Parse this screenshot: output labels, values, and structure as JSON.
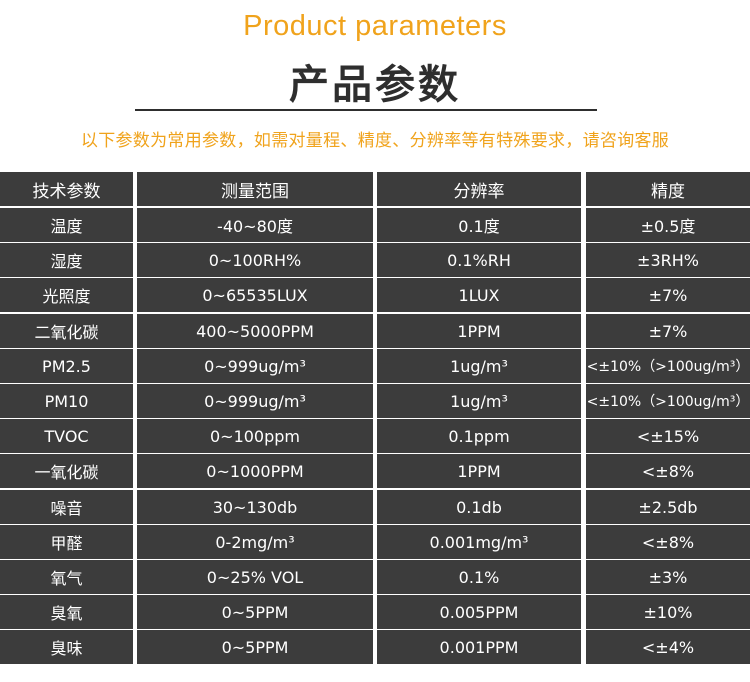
{
  "header": {
    "subtitle_en": "Product parameters",
    "title_zh": "产品参数",
    "notice": "以下参数为常用参数，如需对量程、精度、分辨率等有特殊要求，请咨询客服"
  },
  "table": {
    "columns": [
      "技术参数",
      "测量范围",
      "分辨率",
      "精度"
    ],
    "rows": [
      [
        "温度",
        "-40~80度",
        "0.1度",
        "±0.5度"
      ],
      [
        "湿度",
        "0~100RH%",
        "0.1%RH",
        "±3RH%"
      ],
      [
        "光照度",
        "0~65535LUX",
        "1LUX",
        "±7%"
      ],
      [
        "二氧化碳",
        "400~5000PPM",
        "1PPM",
        "±7%"
      ],
      [
        "PM2.5",
        "0~999ug/m³",
        "1ug/m³",
        "<±10%（>100ug/m³）"
      ],
      [
        "PM10",
        "0~999ug/m³",
        "1ug/m³",
        "<±10%（>100ug/m³）"
      ],
      [
        "TVOC",
        "0~100ppm",
        "0.1ppm",
        "<±15%"
      ],
      [
        "一氧化碳",
        "0~1000PPM",
        "1PPM",
        "<±8%"
      ],
      [
        "噪音",
        "30~130db",
        "0.1db",
        "±2.5db"
      ],
      [
        "甲醛",
        "0-2mg/m³",
        "0.001mg/m³",
        "<±8%"
      ],
      [
        "氧气",
        "0~25% VOL",
        "0.1%",
        "±3%"
      ],
      [
        "臭氧",
        "0~5PPM",
        "0.005PPM",
        "±10%"
      ],
      [
        "臭味",
        "0~5PPM",
        "0.001PPM",
        "<±4%"
      ]
    ]
  }
}
